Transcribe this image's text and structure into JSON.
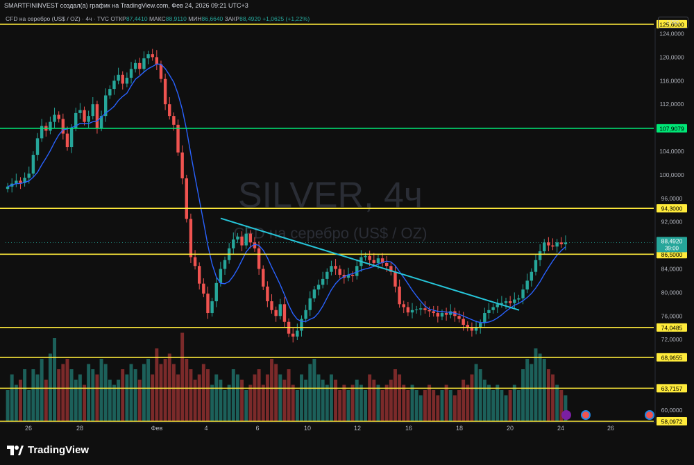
{
  "header": {
    "publisher_line": "SMARTFININVEST создал(а) график на TradingView.com, Фев 24, 2026 09:21 UTC+3",
    "instrument": "CFD на серебро (US$ / OZ)",
    "interval": "4ч",
    "source": "TVC",
    "open_label": "ОТКР",
    "open_value": "87,4410",
    "high_label": "МАКС",
    "high_value": "88,9110",
    "low_label": "МИН",
    "low_value": "86,6640",
    "close_label": "ЗАКР",
    "close_value": "88,4920",
    "change_value": "+1,0625 (+1,22%)",
    "currency": "USD"
  },
  "watermark": {
    "symbol_line": "SILVER, 4ч",
    "name_line": "CFD на серебро (US$ / OZ)"
  },
  "footer": {
    "brand": "TradingView"
  },
  "colors": {
    "up": "#26a69a",
    "down": "#ef5350",
    "ma": "#2962ff",
    "trend": "#26c6da",
    "level_yellow": "#ffeb3b",
    "level_green": "#00e676",
    "background": "#0f0f0f"
  },
  "chart_data": {
    "type": "candlestick",
    "ylim": [
      58.0972,
      126.0
    ],
    "y_ticks": [
      "124,0000",
      "120,0000",
      "116,0000",
      "112,0000",
      "104,0000",
      "100,0000",
      "96,0000",
      "92,0000",
      "84,0000",
      "80,0000",
      "76,0000",
      "72,0000",
      "60,0000"
    ],
    "y_tick_values": [
      124,
      120,
      116,
      112,
      104,
      100,
      96,
      92,
      84,
      80,
      76,
      72,
      60
    ],
    "x_ticks": [
      "26",
      "28",
      "Фев",
      "4",
      "6",
      "10",
      "12",
      "16",
      "18",
      "20",
      "24",
      "26"
    ],
    "price_label": {
      "value": "88,4920",
      "countdown": "39:00"
    },
    "horizontal_levels": [
      {
        "value": 125.6,
        "label": "125,6000",
        "color": "#ffeb3b"
      },
      {
        "value": 107.9079,
        "label": "107,9079",
        "color": "#00e676"
      },
      {
        "value": 94.3,
        "label": "94,3000",
        "color": "#ffeb3b"
      },
      {
        "value": 86.5,
        "label": "86,5000",
        "color": "#ffeb3b"
      },
      {
        "value": 74.0485,
        "label": "74,0485",
        "color": "#ffeb3b"
      },
      {
        "value": 68.9655,
        "label": "68,9655",
        "color": "#ffeb3b"
      },
      {
        "value": 63.7157,
        "label": "63,7157",
        "color": "#ffeb3b"
      },
      {
        "value": 58.0972,
        "label": "58,0972",
        "color": "#ffeb3b"
      }
    ],
    "trendline": {
      "start": [
        0,
        92.6
      ],
      "end": [
        0.83,
        77.0
      ]
    },
    "series": [
      {
        "kind": "close_path",
        "values": [
          98.0,
          98.5,
          99.0,
          98.6,
          99.5,
          100.2,
          103.4,
          106.2,
          108.3,
          107.5,
          109.0,
          110.2,
          109.5,
          107.0,
          104.7,
          108.0,
          110.5,
          111.0,
          109.0,
          110.0,
          112.0,
          108.0,
          110.0,
          113.5,
          114.6,
          116.0,
          117.0,
          115.5,
          116.5,
          118.0,
          119.0,
          118.0,
          119.8,
          120.5,
          120.0,
          118.8,
          116.3,
          112.0,
          110.0,
          108.5,
          103.8,
          99.4,
          92.5,
          86.0,
          84.5,
          81.5,
          79.8,
          76.5,
          78.5,
          81.6,
          84.0,
          85.5,
          87.5,
          89.0,
          89.5,
          88.0,
          90.0,
          88.5,
          87.5,
          84.0,
          81.0,
          78.5,
          77.0,
          76.0,
          78.0,
          75.0,
          73.0,
          72.5,
          73.5,
          75.5,
          77.0,
          79.0,
          80.5,
          81.3,
          82.3,
          83.5,
          84.5,
          84.0,
          83.0,
          82.5,
          83.0,
          82.8,
          84.5,
          86.0,
          86.2,
          85.5,
          85.0,
          85.8,
          85.0,
          84.5,
          83.5,
          81.0,
          78.0,
          77.5,
          76.6,
          77.0,
          77.1,
          77.3,
          77.0,
          76.8,
          76.5,
          75.9,
          76.5,
          76.2,
          76.8,
          76.0,
          75.5,
          74.5,
          74.0,
          73.5,
          74.0,
          74.8,
          76.5,
          77.0,
          77.5,
          78.0,
          78.2,
          78.5,
          78.2,
          78.8,
          79.0,
          80.5,
          82.0,
          83.5,
          85.5,
          87.0,
          88.5,
          88.0,
          87.8,
          88.5,
          88.2,
          88.49
        ]
      },
      {
        "kind": "volume",
        "values": [
          0.3,
          0.45,
          0.35,
          0.4,
          0.5,
          0.3,
          0.5,
          0.45,
          0.6,
          0.4,
          0.65,
          0.8,
          0.5,
          0.55,
          0.6,
          0.5,
          0.4,
          0.45,
          0.35,
          0.55,
          0.5,
          0.45,
          0.6,
          0.55,
          0.4,
          0.35,
          0.4,
          0.5,
          0.45,
          0.55,
          0.5,
          0.4,
          0.55,
          0.6,
          0.45,
          0.7,
          0.55,
          0.6,
          0.65,
          0.55,
          0.45,
          0.85,
          0.6,
          0.5,
          0.4,
          0.45,
          0.55,
          0.5,
          0.35,
          0.45,
          0.4,
          0.3,
          0.35,
          0.5,
          0.45,
          0.4,
          0.3,
          0.35,
          0.45,
          0.5,
          0.35,
          0.45,
          0.6,
          0.55,
          0.45,
          0.4,
          0.5,
          0.35,
          0.3,
          0.45,
          0.4,
          0.55,
          0.6,
          0.45,
          0.4,
          0.35,
          0.45,
          0.4,
          0.3,
          0.35,
          0.3,
          0.35,
          0.4,
          0.35,
          0.3,
          0.45,
          0.4,
          0.35,
          0.3,
          0.35,
          0.4,
          0.5,
          0.45,
          0.35,
          0.3,
          0.35,
          0.3,
          0.25,
          0.3,
          0.35,
          0.3,
          0.25,
          0.3,
          0.35,
          0.3,
          0.25,
          0.3,
          0.4,
          0.35,
          0.45,
          0.55,
          0.5,
          0.4,
          0.35,
          0.3,
          0.35,
          0.3,
          0.25,
          0.3,
          0.35,
          0.3,
          0.5,
          0.6,
          0.55,
          0.7,
          0.65,
          0.6,
          0.5,
          0.45,
          0.35,
          0.3,
          0.25
        ]
      }
    ]
  }
}
